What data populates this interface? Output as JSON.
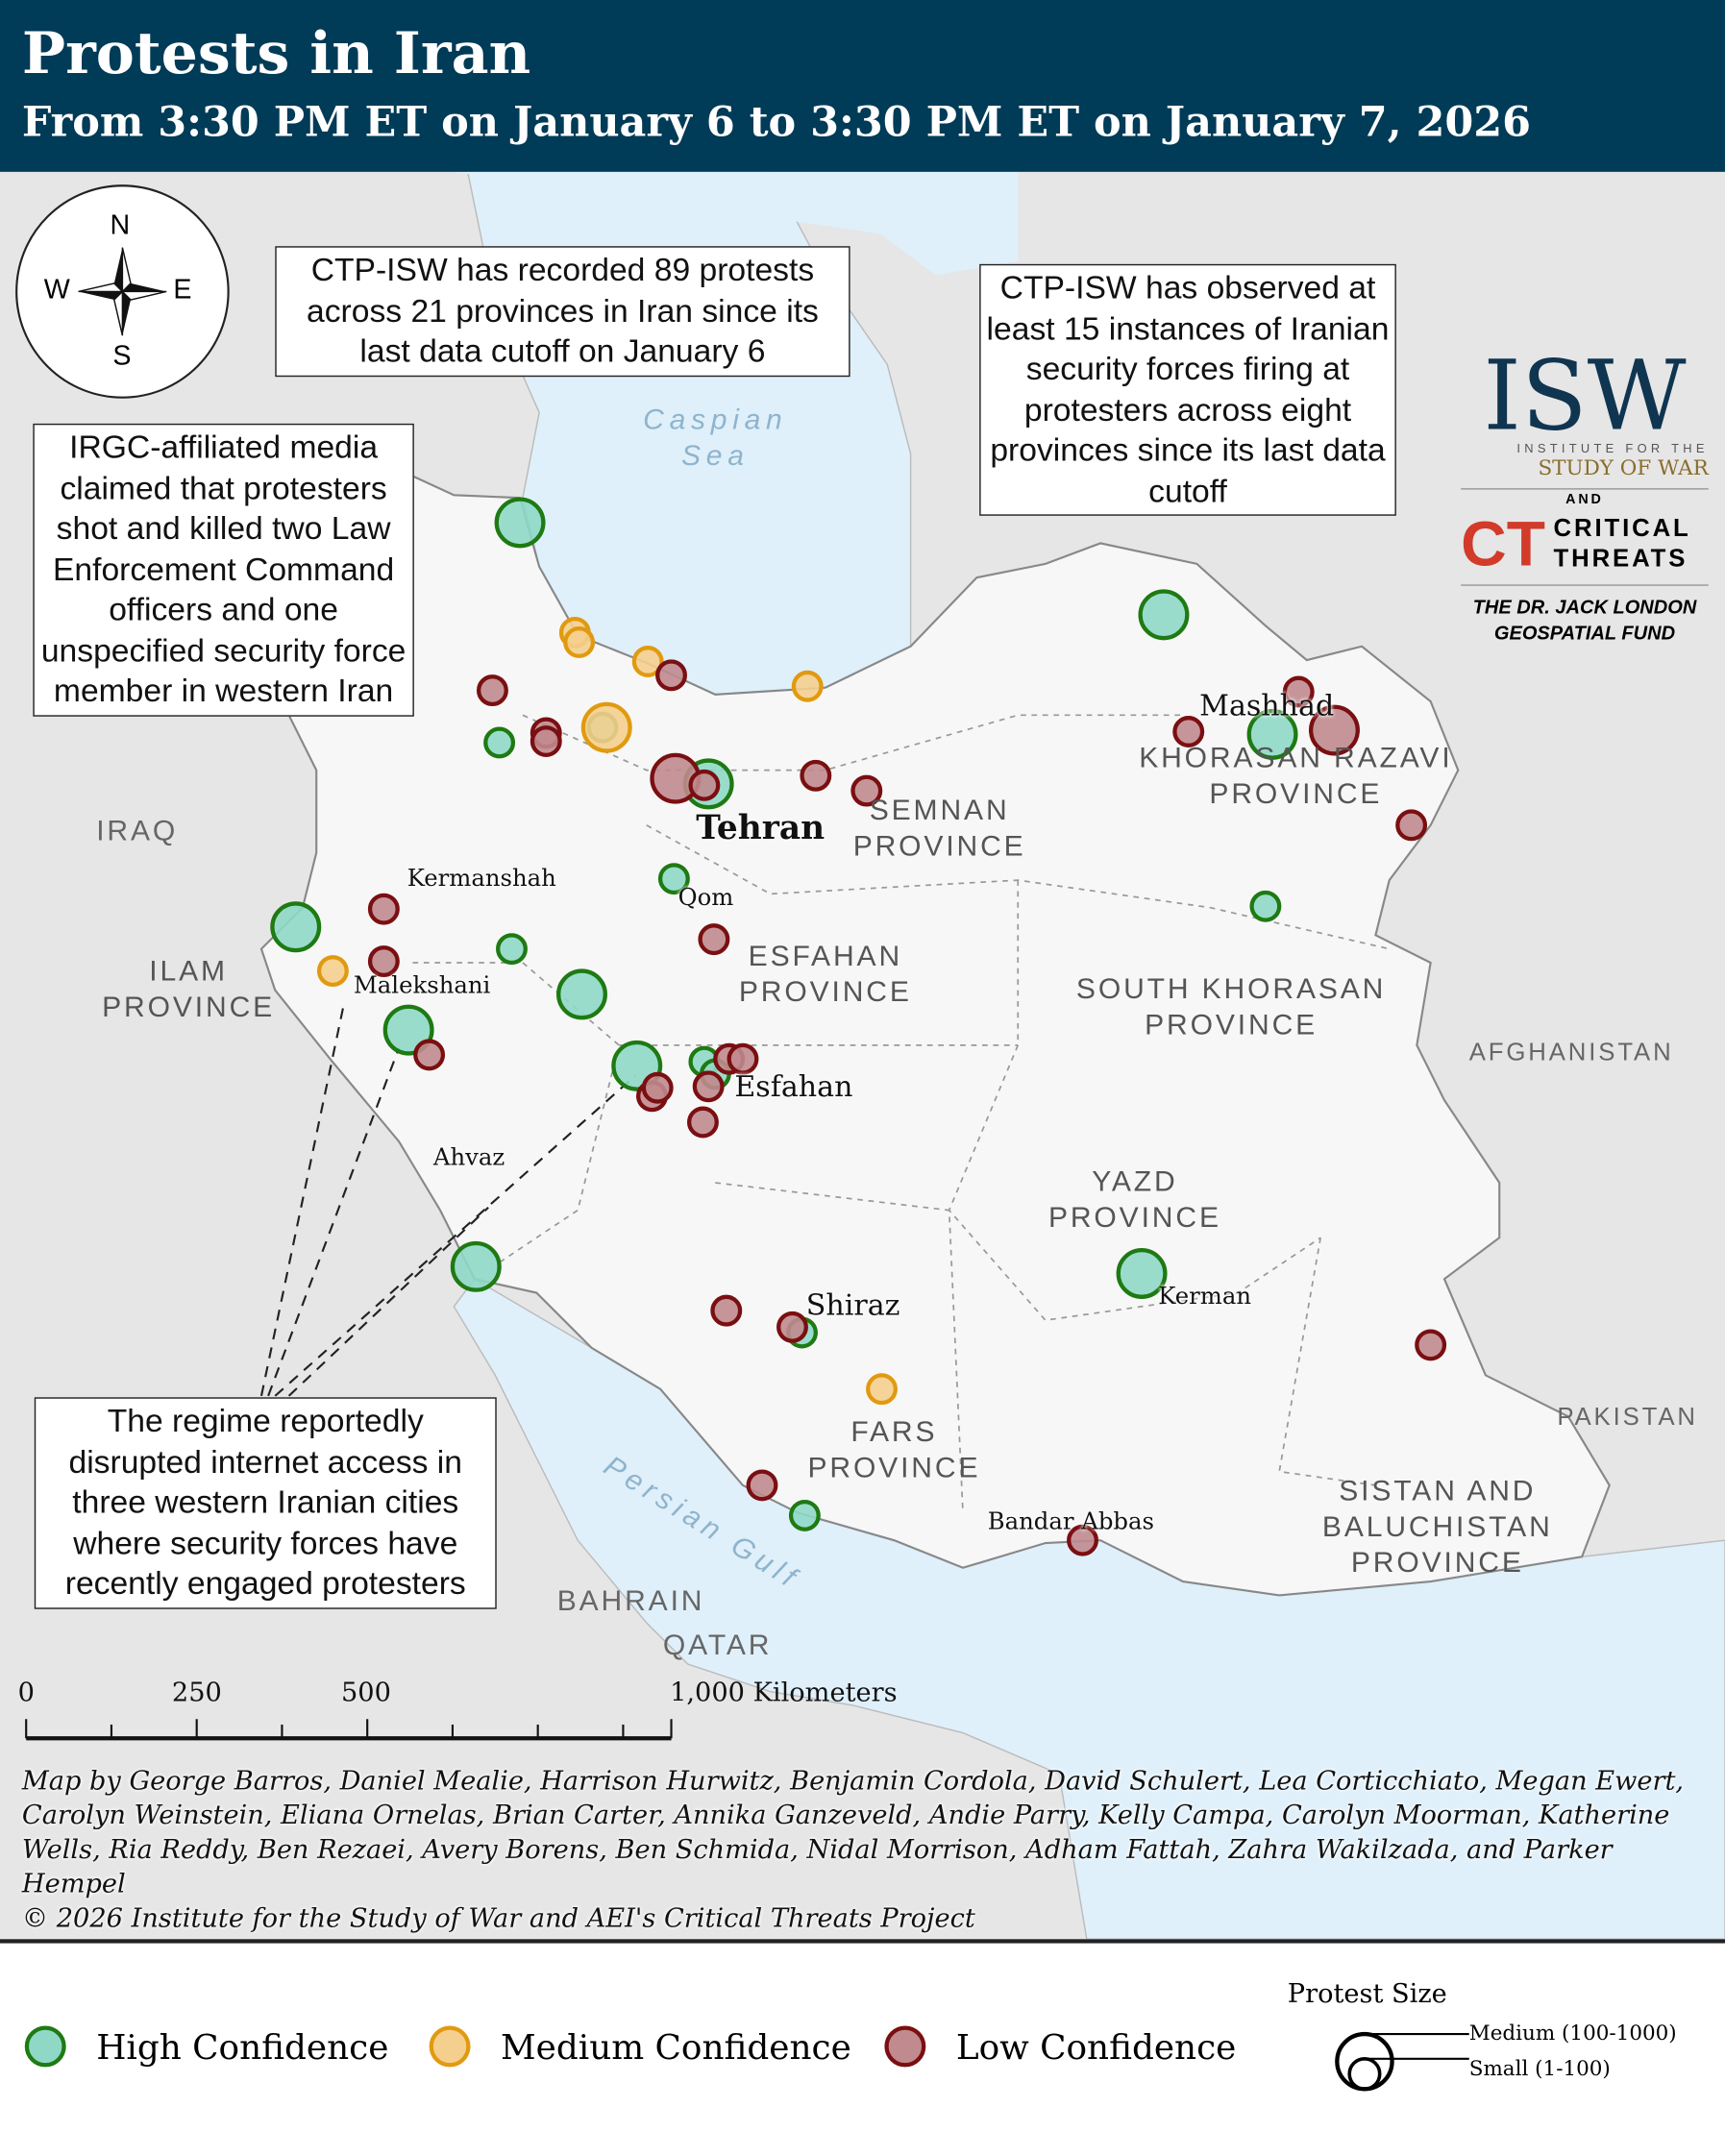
{
  "header": {
    "title": "Protests in Iran",
    "subtitle": "From 3:30 PM ET on January 6 to 3:30 PM ET on January 7, 2026"
  },
  "compass": {
    "n": "N",
    "s": "S",
    "e": "E",
    "w": "W"
  },
  "callouts": {
    "recorded": "CTP-ISW has recorded 89 protests across 21 provinces in Iran since its last data cutoff on January 6",
    "observed": "CTP-ISW has observed at least 15 instances of Iranian security forces firing at protesters across eight provinces since its last data cutoff",
    "irgc": "IRGC-affiliated media claimed that protesters shot and killed two Law Enforcement Command officers and one unspecified security force member in western Iran",
    "internet": "The regime reportedly disrupted internet access in three western Iranian cities where security forces have recently engaged protesters"
  },
  "logo": {
    "isw": "ISW",
    "isw_sub1": "INSTITUTE FOR THE",
    "isw_sub2": "STUDY OF WAR",
    "and": "AND",
    "ct": "CT",
    "ct1": "CRITICAL",
    "ct2": "THREATS",
    "fund1": "THE DR. JACK LONDON",
    "fund2": "GEOSPATIAL FUND"
  },
  "labels": {
    "caspian": "Caspian Sea",
    "persian_gulf": "Persian Gulf",
    "iraq": "IRAQ",
    "afghanistan": "AFGHANISTAN",
    "pakistan": "PAKISTAN",
    "bahrain": "BAHRAIN",
    "qatar": "QATAR",
    "ilam": "ILAM PROVINCE",
    "semnan": "SEMNAN PROVINCE",
    "esfahan_prov": "ESFAHAN PROVINCE",
    "khorasan_razavi": "KHORASAN RAZAVI PROVINCE",
    "south_khorasan": "SOUTH KHORASAN PROVINCE",
    "yazd": "YAZD PROVINCE",
    "fars": "FARS PROVINCE",
    "sistan": "SISTAN AND BALUCHISTAN PROVINCE"
  },
  "cities": {
    "tehran": "Tehran",
    "mashhad": "Mashhad",
    "kermanshah": "Kermanshah",
    "qom": "Qom",
    "malekshani": "Malekshani",
    "esfahan": "Esfahan",
    "ahvaz": "Ahvaz",
    "shiraz": "Shiraz",
    "kerman": "Kerman",
    "bandar_abbas": "Bandar Abbas"
  },
  "scale": {
    "t0": "0",
    "t1": "250",
    "t2": "500",
    "t3": "1,000 Kilometers"
  },
  "credits": {
    "authors": "Map by George Barros, Daniel Mealie, Harrison Hurwitz, Benjamin Cordola, David Schulert, Lea Corticchiato, Megan Ewert, Carolyn Weinstein, Eliana Ornelas, Brian Carter, Annika Ganzeveld, Andie Parry, Kelly Campa, Carolyn Moorman, Katherine Wells, Ria Reddy, Ben Rezaei, Avery Borens, Ben Schmida, Nidal Morrison, Adham Fattah, Zahra Wakilzada, and Parker Hempel",
    "copyright": "© 2026 Institute for the Study of War and AEI's Critical Threats Project"
  },
  "legend": {
    "high": "High Confidence",
    "medium": "Medium Confidence",
    "low": "Low Confidence",
    "size_title": "Protest Size",
    "size_medium": "Medium (100-1000)",
    "size_small": "Small (1-100)"
  },
  "colors": {
    "high_fill": "#8fd8c6",
    "high_stroke": "#1e7a12",
    "medium_fill": "#f5cf8e",
    "medium_stroke": "#e19a10",
    "low_fill": "#c08a8e",
    "low_stroke": "#7a0f12",
    "header": "#003b57",
    "water": "#dff0fb",
    "land": "#f7f7f7"
  },
  "protests": [
    {
      "c": "high",
      "s": "medium"
    },
    {
      "c": "high",
      "s": "medium"
    },
    {
      "c": "high",
      "s": "medium"
    },
    {
      "c": "high",
      "s": "small"
    },
    {
      "c": "high",
      "s": "small"
    },
    {
      "c": "high",
      "s": "medium"
    },
    {
      "c": "high",
      "s": "small"
    },
    {
      "c": "high",
      "s": "medium"
    },
    {
      "c": "high",
      "s": "small"
    },
    {
      "c": "high",
      "s": "medium"
    },
    {
      "c": "high",
      "s": "medium"
    },
    {
      "c": "high",
      "s": "medium"
    },
    {
      "c": "high",
      "s": "small"
    },
    {
      "c": "high",
      "s": "small"
    },
    {
      "c": "high",
      "s": "medium"
    },
    {
      "c": "high",
      "s": "medium"
    },
    {
      "c": "high",
      "s": "small"
    },
    {
      "c": "high",
      "s": "small"
    },
    {
      "c": "high",
      "s": "small"
    },
    {
      "c": "medium",
      "s": "small"
    },
    {
      "c": "medium",
      "s": "small"
    },
    {
      "c": "medium",
      "s": "small"
    },
    {
      "c": "medium",
      "s": "small"
    },
    {
      "c": "medium",
      "s": "medium"
    },
    {
      "c": "medium",
      "s": "small"
    },
    {
      "c": "medium",
      "s": "small"
    },
    {
      "c": "low",
      "s": "small"
    },
    {
      "c": "low",
      "s": "small"
    },
    {
      "c": "low",
      "s": "small"
    },
    {
      "c": "low",
      "s": "small"
    },
    {
      "c": "low",
      "s": "medium"
    },
    {
      "c": "low",
      "s": "small"
    },
    {
      "c": "low",
      "s": "small"
    },
    {
      "c": "low",
      "s": "small"
    },
    {
      "c": "low",
      "s": "small"
    },
    {
      "c": "low",
      "s": "small"
    },
    {
      "c": "low",
      "s": "medium"
    },
    {
      "c": "low",
      "s": "small"
    },
    {
      "c": "low",
      "s": "small"
    },
    {
      "c": "low",
      "s": "small"
    },
    {
      "c": "low",
      "s": "small"
    },
    {
      "c": "low",
      "s": "small"
    },
    {
      "c": "low",
      "s": "small"
    },
    {
      "c": "low",
      "s": "small"
    },
    {
      "c": "low",
      "s": "small"
    },
    {
      "c": "low",
      "s": "small"
    },
    {
      "c": "low",
      "s": "small"
    },
    {
      "c": "low",
      "s": "small"
    },
    {
      "c": "low",
      "s": "small"
    },
    {
      "c": "low",
      "s": "small"
    },
    {
      "c": "low",
      "s": "small"
    },
    {
      "c": "low",
      "s": "small"
    },
    {
      "c": "low",
      "s": "small"
    }
  ]
}
